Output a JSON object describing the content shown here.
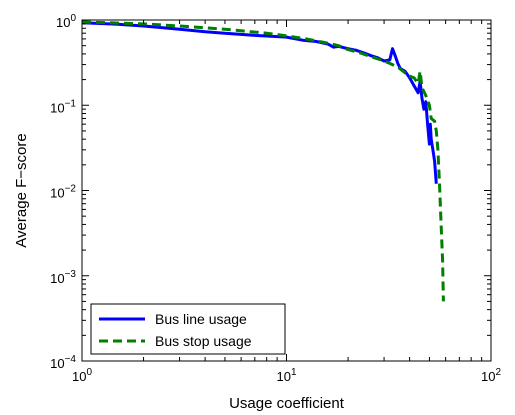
{
  "chart_data": {
    "type": "line",
    "xlabel": "Usage coefficient",
    "ylabel": "Average F−score",
    "xscale": "log",
    "yscale": "log",
    "xlim": [
      1,
      100
    ],
    "ylim": [
      0.0001,
      1
    ],
    "x_ticks": [
      {
        "value": 1,
        "base": "10",
        "exp": "0"
      },
      {
        "value": 10,
        "base": "10",
        "exp": "1"
      },
      {
        "value": 100,
        "base": "10",
        "exp": "2"
      }
    ],
    "y_ticks": [
      {
        "value": 0.0001,
        "base": "10",
        "exp": "−4"
      },
      {
        "value": 0.001,
        "base": "10",
        "exp": "−3"
      },
      {
        "value": 0.01,
        "base": "10",
        "exp": "−2"
      },
      {
        "value": 0.1,
        "base": "10",
        "exp": "−1"
      },
      {
        "value": 1,
        "base": "10",
        "exp": "0"
      }
    ],
    "grid": false,
    "legend": {
      "position": "bottom-left"
    },
    "series": [
      {
        "name": "Bus line usage",
        "color": "#0000ff",
        "dash": "solid",
        "points": [
          [
            1.0,
            0.93
          ],
          [
            1.5,
            0.89
          ],
          [
            2.0,
            0.85
          ],
          [
            3.0,
            0.78
          ],
          [
            4.0,
            0.73
          ],
          [
            5.0,
            0.7
          ],
          [
            7.0,
            0.66
          ],
          [
            10.0,
            0.63
          ],
          [
            12.0,
            0.58
          ],
          [
            14.0,
            0.56
          ],
          [
            16.0,
            0.52
          ],
          [
            17.0,
            0.48
          ],
          [
            18.0,
            0.49
          ],
          [
            20.0,
            0.46
          ],
          [
            22.0,
            0.44
          ],
          [
            24.0,
            0.41
          ],
          [
            26.0,
            0.38
          ],
          [
            28.0,
            0.36
          ],
          [
            30.0,
            0.33
          ],
          [
            32.0,
            0.34
          ],
          [
            33.0,
            0.46
          ],
          [
            34.0,
            0.38
          ],
          [
            35.0,
            0.31
          ],
          [
            36.0,
            0.27
          ],
          [
            38.0,
            0.25
          ],
          [
            40.0,
            0.21
          ],
          [
            42.0,
            0.17
          ],
          [
            44.0,
            0.14
          ],
          [
            45.0,
            0.19
          ],
          [
            46.0,
            0.12
          ],
          [
            47.0,
            0.09
          ],
          [
            48.0,
            0.11
          ],
          [
            49.0,
            0.06
          ],
          [
            50.0,
            0.035
          ],
          [
            50.5,
            0.06
          ],
          [
            51.0,
            0.04
          ],
          [
            52.0,
            0.03
          ],
          [
            53.0,
            0.022
          ],
          [
            54.0,
            0.012
          ]
        ]
      },
      {
        "name": "Bus stop usage",
        "color": "#007f00",
        "dash": "dashed",
        "points": [
          [
            1.0,
            0.95
          ],
          [
            2.0,
            0.9
          ],
          [
            3.0,
            0.85
          ],
          [
            5.0,
            0.78
          ],
          [
            8.0,
            0.7
          ],
          [
            10.0,
            0.65
          ],
          [
            12.0,
            0.61
          ],
          [
            15.0,
            0.55
          ],
          [
            18.0,
            0.5
          ],
          [
            20.0,
            0.45
          ],
          [
            23.0,
            0.41
          ],
          [
            26.0,
            0.37
          ],
          [
            29.0,
            0.34
          ],
          [
            32.0,
            0.31
          ],
          [
            35.0,
            0.28
          ],
          [
            38.0,
            0.24
          ],
          [
            40.0,
            0.22
          ],
          [
            42.0,
            0.21
          ],
          [
            44.0,
            0.18
          ],
          [
            45.0,
            0.25
          ],
          [
            46.0,
            0.16
          ],
          [
            48.0,
            0.13
          ],
          [
            50.0,
            0.1
          ],
          [
            51.0,
            0.07
          ],
          [
            53.0,
            0.065
          ],
          [
            54.0,
            0.05
          ],
          [
            55.0,
            0.03
          ],
          [
            56.0,
            0.012
          ],
          [
            57.0,
            0.004
          ],
          [
            58.0,
            0.0015
          ],
          [
            58.5,
            0.0005
          ]
        ]
      }
    ]
  }
}
